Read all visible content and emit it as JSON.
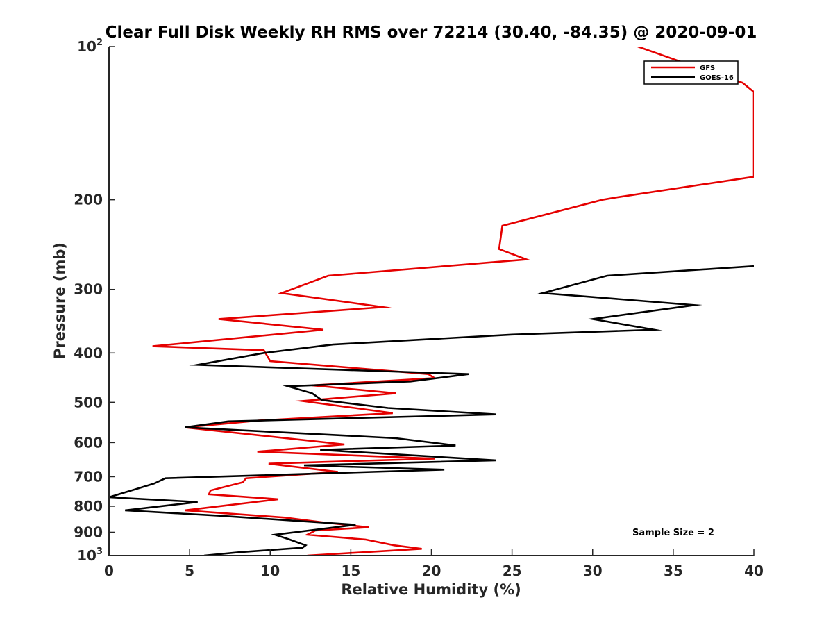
{
  "chart_data": {
    "type": "line",
    "title": "Clear Full Disk Weekly RH RMS over 72214 (30.40, -84.35) @ 2020-09-01",
    "xlabel": "Relative Humidity (%)",
    "ylabel": "Pressure (mb)",
    "xlim": [
      0,
      40
    ],
    "ylim": [
      100,
      1000
    ],
    "yscale": "log",
    "y_reversed": true,
    "grid": false,
    "legend_position": "top-right",
    "x_ticks": [
      {
        "value": 0,
        "label": "0"
      },
      {
        "value": 5,
        "label": "5"
      },
      {
        "value": 10,
        "label": "10"
      },
      {
        "value": 15,
        "label": "15"
      },
      {
        "value": 20,
        "label": "20"
      },
      {
        "value": 25,
        "label": "25"
      },
      {
        "value": 30,
        "label": "30"
      },
      {
        "value": 35,
        "label": "35"
      },
      {
        "value": 40,
        "label": "40"
      }
    ],
    "y_ticks": [
      {
        "value": 100,
        "base": "10",
        "exp": "2"
      },
      {
        "value": 200,
        "label": "200"
      },
      {
        "value": 300,
        "label": "300"
      },
      {
        "value": 400,
        "label": "400"
      },
      {
        "value": 500,
        "label": "500"
      },
      {
        "value": 600,
        "label": "600"
      },
      {
        "value": 700,
        "label": "700"
      },
      {
        "value": 800,
        "label": "800"
      },
      {
        "value": 900,
        "label": "900"
      },
      {
        "value": 1000,
        "base": "10",
        "exp": "3"
      }
    ],
    "annotation": "Sample Size = 2",
    "series": [
      {
        "name": "GFS",
        "color": "#e50000",
        "points": [
          [
            32.8,
            100
          ],
          [
            36.5,
            110
          ],
          [
            39.3,
            117.8
          ],
          [
            40,
            122.8
          ],
          [
            40,
            180.2
          ],
          [
            31.6,
            197.6
          ],
          [
            30.6,
            200
          ],
          [
            24.4,
            225
          ],
          [
            24.2,
            250
          ],
          [
            25.9,
            262
          ],
          [
            13.6,
            282
          ],
          [
            10.7,
            305
          ],
          [
            17.0,
            325
          ],
          [
            6.8,
            343
          ],
          [
            13.3,
            360
          ],
          [
            2.7,
            388
          ],
          [
            9.6,
            395
          ],
          [
            10.0,
            415
          ],
          [
            19.8,
            440
          ],
          [
            20.2,
            448
          ],
          [
            12.6,
            463
          ],
          [
            17.8,
            480
          ],
          [
            12.0,
            497
          ],
          [
            17.6,
            525
          ],
          [
            9.3,
            543
          ],
          [
            4.7,
            560
          ],
          [
            14.6,
            605
          ],
          [
            9.2,
            625
          ],
          [
            20.2,
            645
          ],
          [
            9.9,
            660
          ],
          [
            14.2,
            685
          ],
          [
            8.5,
            705
          ],
          [
            8.3,
            718
          ],
          [
            6.3,
            745
          ],
          [
            6.2,
            758
          ],
          [
            10.5,
            775
          ],
          [
            4.7,
            815
          ],
          [
            10.9,
            842
          ],
          [
            13.2,
            860
          ],
          [
            16.1,
            880
          ],
          [
            12.8,
            893
          ],
          [
            12.3,
            910
          ],
          [
            15.9,
            930
          ],
          [
            17.7,
            955
          ],
          [
            19.4,
            970
          ],
          [
            12.3,
            1000
          ]
        ]
      },
      {
        "name": "GOES-16",
        "color": "#000000",
        "points": [
          [
            40,
            270
          ],
          [
            30.9,
            282
          ],
          [
            26.9,
            305
          ],
          [
            36.3,
            322
          ],
          [
            30.0,
            343
          ],
          [
            33.8,
            360
          ],
          [
            25.0,
            368
          ],
          [
            13.9,
            385
          ],
          [
            9.6,
            400
          ],
          [
            5.5,
            422
          ],
          [
            22.3,
            440
          ],
          [
            18.7,
            455
          ],
          [
            11.1,
            465
          ],
          [
            12.6,
            480
          ],
          [
            13.2,
            495
          ],
          [
            17.3,
            513
          ],
          [
            24.0,
            528
          ],
          [
            7.4,
            545
          ],
          [
            4.7,
            560
          ],
          [
            17.8,
            588
          ],
          [
            21.5,
            608
          ],
          [
            13.1,
            620
          ],
          [
            24.0,
            650
          ],
          [
            12.1,
            665
          ],
          [
            20.8,
            678
          ],
          [
            3.5,
            705
          ],
          [
            2.8,
            722
          ],
          [
            1.7,
            740
          ],
          [
            0,
            768
          ],
          [
            5.5,
            785
          ],
          [
            1.0,
            815
          ],
          [
            6.8,
            835
          ],
          [
            15.3,
            870
          ],
          [
            10.3,
            910
          ],
          [
            11.2,
            930
          ],
          [
            12.2,
            955
          ],
          [
            12.0,
            965
          ],
          [
            8.1,
            985
          ],
          [
            5.9,
            1000
          ]
        ]
      }
    ]
  }
}
